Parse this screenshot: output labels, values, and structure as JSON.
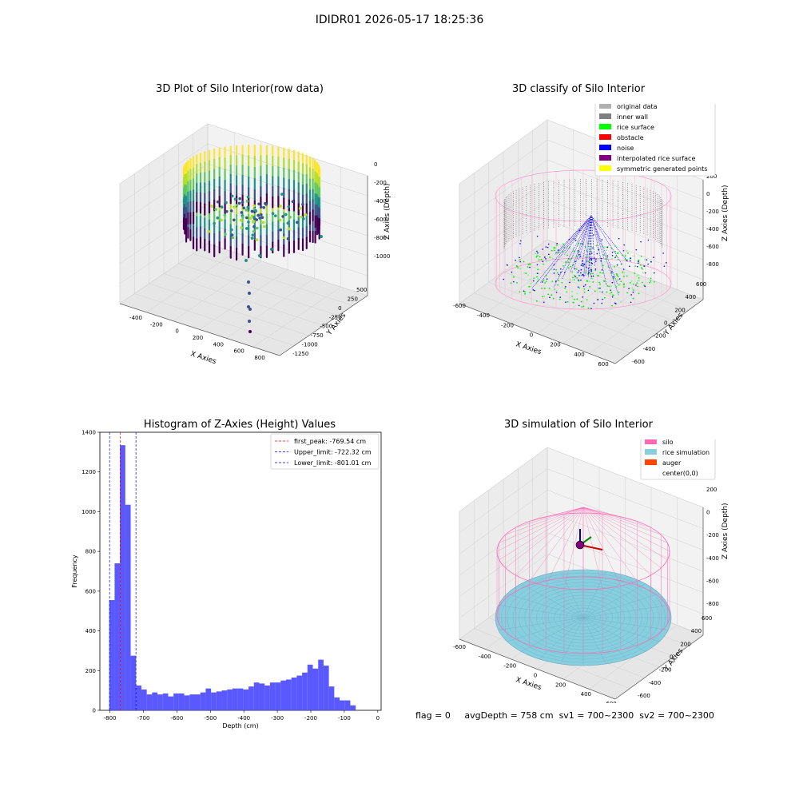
{
  "suptitle": "IDIDR01 2026-05-17 18:25:36",
  "footer": {
    "flag": "flag = 0",
    "avg_depth": "avgDepth = 758 cm",
    "sv1": "sv1 = 700~2300",
    "sv2": "sv2 = 700~2300"
  },
  "colors": {
    "hist_bar": "#5050ff",
    "silo": "#ff69b4",
    "rice_simulation": "#87cedf",
    "auger": "#ff4500",
    "original_data": "#b0b0b0",
    "inner_wall": "#808080",
    "rice_surface": "#00ff00",
    "obstacle": "#ff0000",
    "noise": "#0000ff",
    "interpolated_rice_surface": "#800080",
    "symmetric_generated_points": "#ffff00"
  },
  "chart_data": [
    {
      "type": "scatter",
      "title": "3D Plot of Silo Interior(row data)",
      "xlabel": "X Axies",
      "ylabel": "Y Axies",
      "zlabel": "Z Axies (Depth)",
      "xticks": [
        "-400",
        "-200",
        "0",
        "200",
        "400",
        "600",
        "800"
      ],
      "yticks": [
        "500",
        "250",
        "0",
        "-250",
        "-500",
        "-750",
        "-1000",
        "-1250"
      ],
      "zticks": [
        "0",
        "-200",
        "-400",
        "-600",
        "-800",
        "-1000"
      ],
      "colormap": "viridis"
    },
    {
      "type": "scatter",
      "title": "3D classify of Silo Interior",
      "xlabel": "X Axies",
      "ylabel": "Y Axies",
      "zlabel": "Z Axies (Depth)",
      "xticks": [
        "-600",
        "-400",
        "-200",
        "0",
        "200",
        "400",
        "600"
      ],
      "yticks": [
        "600",
        "400",
        "200",
        "0",
        "-200",
        "-400",
        "-600"
      ],
      "zticks": [
        "200",
        "0",
        "-200",
        "-400",
        "-600",
        "-800"
      ],
      "legend_position": "top-right",
      "legend": [
        {
          "label": "original data",
          "color": "#b0b0b0"
        },
        {
          "label": "inner wall",
          "color": "#808080"
        },
        {
          "label": "rice surface",
          "color": "#00ff00"
        },
        {
          "label": "obstacle",
          "color": "#ff0000"
        },
        {
          "label": "noise",
          "color": "#0000ff"
        },
        {
          "label": "interpolated rice surface",
          "color": "#800080"
        },
        {
          "label": "symmetric generated points",
          "color": "#ffff00"
        }
      ]
    },
    {
      "type": "bar",
      "title": "Histogram of Z-Axies (Height) Values",
      "xlabel": "Depth (cm)",
      "ylabel": "Frequency",
      "xlim": [
        -830,
        10
      ],
      "ylim": [
        0,
        1400
      ],
      "xticks": [
        -800,
        -700,
        -600,
        -500,
        -400,
        -300,
        -200,
        -100,
        0
      ],
      "yticks": [
        0,
        200,
        400,
        600,
        800,
        1000,
        1200,
        1400
      ],
      "bin_start": -802,
      "bin_width": 16,
      "values": [
        555,
        740,
        1335,
        1035,
        275,
        125,
        105,
        80,
        90,
        80,
        85,
        70,
        85,
        85,
        75,
        80,
        80,
        90,
        110,
        90,
        95,
        100,
        105,
        110,
        110,
        105,
        120,
        140,
        135,
        125,
        140,
        140,
        150,
        155,
        165,
        175,
        190,
        230,
        210,
        255,
        225,
        120,
        65,
        50,
        50,
        25
      ],
      "vlines": [
        {
          "label": "first_peak: -769.54 cm",
          "x": -769.54,
          "color": "#ff0000"
        },
        {
          "label": "Upper_limit: -722.32 cm",
          "x": -722.32,
          "color": "#0000ff"
        },
        {
          "label": "Lower_limit: -801.01 cm",
          "x": -801.01,
          "color": "#0000ff"
        }
      ],
      "legend_position": "top-right"
    },
    {
      "type": "scatter",
      "title": "3D simulation of Silo Interior",
      "xlabel": "X Axies",
      "ylabel": "Y Axies",
      "zlabel": "Z Axies (Depth)",
      "xticks": [
        "-600",
        "-400",
        "-200",
        "0",
        "200",
        "400",
        "600"
      ],
      "yticks": [
        "600",
        "400",
        "200",
        "0",
        "-200",
        "-400",
        "-600"
      ],
      "zticks": [
        "200",
        "0",
        "-200",
        "-400",
        "-600",
        "-800"
      ],
      "legend_position": "top-right",
      "legend": [
        {
          "label": "silo",
          "color": "#ff69b4"
        },
        {
          "label": "rice simulation",
          "color": "#87cedf"
        },
        {
          "label": "auger",
          "color": "#ff4500"
        },
        {
          "label": "center(0,0)",
          "color": ""
        }
      ]
    }
  ]
}
